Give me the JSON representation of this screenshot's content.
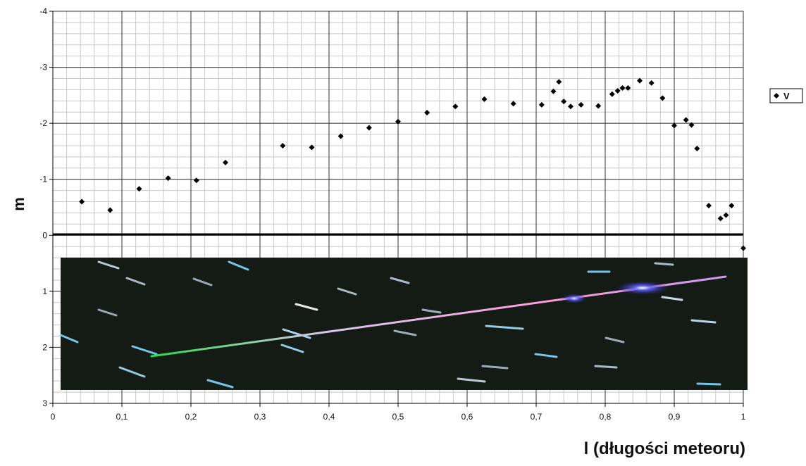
{
  "chart_data": {
    "type": "scatter",
    "xlabel": "l (długości meteoru)",
    "ylabel": "m",
    "xlim": [
      0,
      1
    ],
    "ylim": [
      3,
      -4
    ],
    "x_ticks": [
      "0",
      "0,1",
      "0,2",
      "0,3",
      "0,4",
      "0,5",
      "0,6",
      "0,7",
      "0,8",
      "0,9",
      "1"
    ],
    "y_ticks": [
      "-4",
      "-3",
      "-2",
      "-1",
      "0",
      "1",
      "2",
      "3"
    ],
    "legend_position": "right",
    "grid": true,
    "series": [
      {
        "name": "V",
        "color": "#000000",
        "x": [
          0.042,
          0.083,
          0.125,
          0.167,
          0.208,
          0.25,
          0.333,
          0.375,
          0.417,
          0.458,
          0.5,
          0.542,
          0.583,
          0.625,
          0.667,
          0.708,
          0.725,
          0.733,
          0.74,
          0.75,
          0.765,
          0.79,
          0.81,
          0.818,
          0.825,
          0.833,
          0.85,
          0.867,
          0.883,
          0.9,
          0.917,
          0.925,
          0.933,
          0.95,
          0.967,
          0.975,
          0.983,
          1.0
        ],
        "y": [
          -0.6,
          -0.45,
          -0.83,
          -1.02,
          -0.98,
          -1.3,
          -1.6,
          -1.57,
          -1.77,
          -1.92,
          -2.03,
          -2.19,
          -2.3,
          -2.43,
          -2.35,
          -2.33,
          -2.57,
          -2.74,
          -2.39,
          -2.3,
          -2.33,
          -2.31,
          -2.52,
          -2.58,
          -2.63,
          -2.63,
          -2.76,
          -2.72,
          -2.45,
          -1.96,
          -2.06,
          -1.97,
          -1.55,
          -0.53,
          -0.3,
          -0.36,
          -0.53,
          0.23
        ]
      }
    ]
  }
}
